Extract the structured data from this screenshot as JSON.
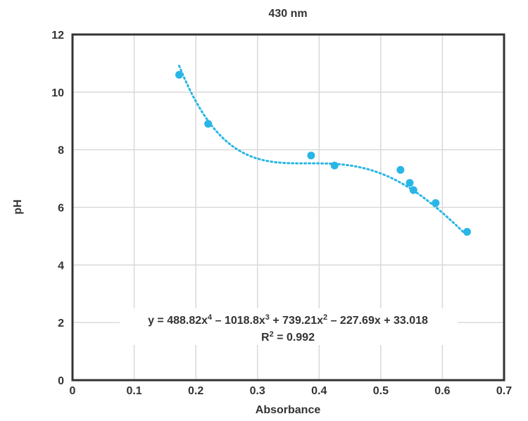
{
  "chart_data": {
    "type": "scatter",
    "title": "430 nm",
    "xlabel": "Absorbance",
    "ylabel": "pH",
    "xlim": [
      0,
      0.7
    ],
    "ylim": [
      0,
      12
    ],
    "xticks": [
      "0",
      "0.1",
      "0.2",
      "0.3",
      "0.4",
      "0.5",
      "0.6",
      "0.7"
    ],
    "yticks": [
      "0",
      "2",
      "4",
      "6",
      "8",
      "10",
      "12"
    ],
    "grid": true,
    "points": [
      {
        "x": 0.173,
        "y": 10.6
      },
      {
        "x": 0.22,
        "y": 8.9
      },
      {
        "x": 0.387,
        "y": 7.8
      },
      {
        "x": 0.425,
        "y": 7.45
      },
      {
        "x": 0.532,
        "y": 7.3
      },
      {
        "x": 0.547,
        "y": 6.85
      },
      {
        "x": 0.553,
        "y": 6.6
      },
      {
        "x": 0.589,
        "y": 6.15
      },
      {
        "x": 0.64,
        "y": 5.15
      }
    ],
    "trendline": {
      "type": "polynomial",
      "order": 4,
      "coefficients": [
        488.82,
        -1018.8,
        739.21,
        -227.69,
        33.018
      ],
      "x_range": [
        0.173,
        0.64
      ]
    },
    "equation": {
      "y_prefix": "y = 488.82x",
      "exp4": "4",
      "t2": " – 1018.8x",
      "exp3": "3",
      "t3": " + 739.21x",
      "exp2": "2",
      "t4": " – 227.69x + 33.018",
      "r2_prefix": "R",
      "r2_exp": "2",
      "r2_value": " = 0.992"
    },
    "colors": {
      "series": "#29b6e6",
      "frame": "#333333",
      "grid": "#d9d9d9",
      "text": "#333333"
    }
  }
}
